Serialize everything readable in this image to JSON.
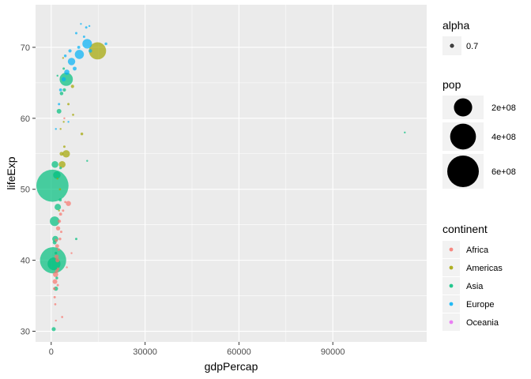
{
  "chart_data": {
    "type": "scatter",
    "xlabel": "gdpPercap",
    "ylabel": "lifeExp",
    "xlim": [
      -5000,
      120000
    ],
    "ylim": [
      28.5,
      76
    ],
    "x_ticks": [
      0,
      30000,
      60000,
      90000
    ],
    "x_tick_labels": [
      "0",
      "30000",
      "60000",
      "90000"
    ],
    "y_ticks": [
      30,
      40,
      50,
      60,
      70
    ],
    "y_tick_labels": [
      "30",
      "40",
      "50",
      "60",
      "70"
    ],
    "grid": true,
    "background": "#ebebeb",
    "point_alpha": 0.7,
    "colors": {
      "Africa": "#F8766D",
      "Americas": "#A3A500",
      "Asia": "#00BF7D",
      "Europe": "#00B0F6",
      "Oceania": "#E76BF3"
    },
    "legends": {
      "alpha": {
        "title": "alpha",
        "items": [
          "0.7"
        ]
      },
      "pop": {
        "title": "pop",
        "items": [
          "2e+08",
          "4e+08",
          "6e+08"
        ],
        "values": [
          200000000,
          400000000,
          600000000
        ]
      },
      "continent": {
        "title": "continent",
        "items": [
          "Africa",
          "Americas",
          "Asia",
          "Europe",
          "Oceania"
        ]
      }
    },
    "points": [
      {
        "continent": "Asia",
        "x": 400,
        "y": 50.5,
        "pop": 560000000
      },
      {
        "continent": "Asia",
        "x": 600,
        "y": 40.0,
        "pop": 372000000
      },
      {
        "continent": "Asia",
        "x": 900,
        "y": 39.5,
        "pop": 90000000
      },
      {
        "continent": "Asia",
        "x": 1100,
        "y": 45.5,
        "pop": 50000000
      },
      {
        "continent": "Asia",
        "x": 1300,
        "y": 43.0,
        "pop": 20000000
      },
      {
        "continent": "Asia",
        "x": 4800,
        "y": 65.5,
        "pop": 95000000
      },
      {
        "continent": "Asia",
        "x": 1200,
        "y": 53.5,
        "pop": 25000000
      },
      {
        "continent": "Asia",
        "x": 1800,
        "y": 52.0,
        "pop": 30000000
      },
      {
        "continent": "Asia",
        "x": 2100,
        "y": 47.5,
        "pop": 22000000
      },
      {
        "continent": "Asia",
        "x": 1100,
        "y": 42.5,
        "pop": 8000000
      },
      {
        "continent": "Asia",
        "x": 800,
        "y": 30.3,
        "pop": 9000000
      },
      {
        "continent": "Asia",
        "x": 1500,
        "y": 36.0,
        "pop": 10000000
      },
      {
        "continent": "Asia",
        "x": 2500,
        "y": 61.0,
        "pop": 12000000
      },
      {
        "continent": "Asia",
        "x": 3300,
        "y": 63.5,
        "pop": 7000000
      },
      {
        "continent": "Asia",
        "x": 4200,
        "y": 64.0,
        "pop": 6000000
      },
      {
        "continent": "Asia",
        "x": 2900,
        "y": 48.5,
        "pop": 5000000
      },
      {
        "continent": "Asia",
        "x": 4000,
        "y": 67.0,
        "pop": 3000000
      },
      {
        "continent": "Asia",
        "x": 8000,
        "y": 43.0,
        "pop": 3000000
      },
      {
        "continent": "Asia",
        "x": 11500,
        "y": 54.0,
        "pop": 2000000
      },
      {
        "continent": "Asia",
        "x": 113000,
        "y": 58.0,
        "pop": 1500000
      },
      {
        "continent": "Asia",
        "x": 2000,
        "y": 66.0,
        "pop": 2000000
      },
      {
        "continent": "Asia",
        "x": 1500,
        "y": 41.0,
        "pop": 4000000
      },
      {
        "continent": "Asia",
        "x": 1800,
        "y": 37.5,
        "pop": 4000000
      },
      {
        "continent": "Asia",
        "x": 3000,
        "y": 53.0,
        "pop": 3500000
      },
      {
        "continent": "Africa",
        "x": 1200,
        "y": 37.0,
        "pop": 12000000
      },
      {
        "continent": "Africa",
        "x": 1400,
        "y": 38.0,
        "pop": 15000000
      },
      {
        "continent": "Africa",
        "x": 1700,
        "y": 40.5,
        "pop": 10000000
      },
      {
        "continent": "Africa",
        "x": 1900,
        "y": 42.0,
        "pop": 8000000
      },
      {
        "continent": "Africa",
        "x": 2200,
        "y": 44.5,
        "pop": 10000000
      },
      {
        "continent": "Africa",
        "x": 2600,
        "y": 45.5,
        "pop": 6000000
      },
      {
        "continent": "Africa",
        "x": 3000,
        "y": 46.5,
        "pop": 5000000
      },
      {
        "continent": "Africa",
        "x": 5500,
        "y": 48.0,
        "pop": 14000000
      },
      {
        "continent": "Africa",
        "x": 1000,
        "y": 36.0,
        "pop": 4000000
      },
      {
        "continent": "Africa",
        "x": 1100,
        "y": 34.8,
        "pop": 3000000
      },
      {
        "continent": "Africa",
        "x": 1300,
        "y": 33.8,
        "pop": 2500000
      },
      {
        "continent": "Africa",
        "x": 1500,
        "y": 31.5,
        "pop": 2000000
      },
      {
        "continent": "Africa",
        "x": 3500,
        "y": 32.0,
        "pop": 2500000
      },
      {
        "continent": "Africa",
        "x": 1800,
        "y": 38.5,
        "pop": 6000000
      },
      {
        "continent": "Africa",
        "x": 2000,
        "y": 40.0,
        "pop": 9000000
      },
      {
        "continent": "Africa",
        "x": 2400,
        "y": 41.5,
        "pop": 4000000
      },
      {
        "continent": "Africa",
        "x": 2800,
        "y": 43.0,
        "pop": 4000000
      },
      {
        "continent": "Africa",
        "x": 3200,
        "y": 44.0,
        "pop": 3000000
      },
      {
        "continent": "Africa",
        "x": 3800,
        "y": 47.0,
        "pop": 3000000
      },
      {
        "continent": "Africa",
        "x": 4500,
        "y": 48.2,
        "pop": 2500000
      },
      {
        "continent": "Africa",
        "x": 1600,
        "y": 42.8,
        "pop": 5000000
      },
      {
        "continent": "Africa",
        "x": 2100,
        "y": 36.5,
        "pop": 3000000
      },
      {
        "continent": "Africa",
        "x": 5000,
        "y": 39.0,
        "pop": 1500000
      },
      {
        "continent": "Africa",
        "x": 6500,
        "y": 41.0,
        "pop": 1000000
      },
      {
        "continent": "Africa",
        "x": 4200,
        "y": 60.0,
        "pop": 1500000
      },
      {
        "continent": "Africa",
        "x": 2200,
        "y": 38.8,
        "pop": 4000000
      },
      {
        "continent": "Americas",
        "x": 14800,
        "y": 69.5,
        "pop": 160000000
      },
      {
        "continent": "Americas",
        "x": 4800,
        "y": 55.0,
        "pop": 30000000
      },
      {
        "continent": "Americas",
        "x": 3500,
        "y": 53.5,
        "pop": 25000000
      },
      {
        "continent": "Americas",
        "x": 4200,
        "y": 56.0,
        "pop": 3000000
      },
      {
        "continent": "Americas",
        "x": 3300,
        "y": 55.0,
        "pop": 8000000
      },
      {
        "continent": "Americas",
        "x": 9800,
        "y": 57.8,
        "pop": 4000000
      },
      {
        "continent": "Americas",
        "x": 6800,
        "y": 64.5,
        "pop": 6000000
      },
      {
        "continent": "Americas",
        "x": 5500,
        "y": 62.0,
        "pop": 3000000
      },
      {
        "continent": "Americas",
        "x": 3000,
        "y": 58.5,
        "pop": 2000000
      },
      {
        "continent": "Americas",
        "x": 2000,
        "y": 51.5,
        "pop": 2000000
      },
      {
        "continent": "Americas",
        "x": 2800,
        "y": 50.0,
        "pop": 2500000
      },
      {
        "continent": "Americas",
        "x": 4000,
        "y": 59.5,
        "pop": 1500000
      },
      {
        "continent": "Americas",
        "x": 2500,
        "y": 47.0,
        "pop": 1500000
      },
      {
        "continent": "Americas",
        "x": 3800,
        "y": 68.5,
        "pop": 1500000
      },
      {
        "continent": "Americas",
        "x": 7000,
        "y": 60.5,
        "pop": 2500000
      },
      {
        "continent": "Europe",
        "x": 11500,
        "y": 70.5,
        "pop": 50000000
      },
      {
        "continent": "Europe",
        "x": 9000,
        "y": 69.0,
        "pop": 45000000
      },
      {
        "continent": "Europe",
        "x": 6500,
        "y": 68.0,
        "pop": 30000000
      },
      {
        "continent": "Europe",
        "x": 5000,
        "y": 66.5,
        "pop": 15000000
      },
      {
        "continent": "Europe",
        "x": 4000,
        "y": 65.5,
        "pop": 10000000
      },
      {
        "continent": "Europe",
        "x": 12500,
        "y": 69.5,
        "pop": 7000000
      },
      {
        "continent": "Europe",
        "x": 17500,
        "y": 70.5,
        "pop": 4000000
      },
      {
        "continent": "Europe",
        "x": 10500,
        "y": 71.5,
        "pop": 3000000
      },
      {
        "continent": "Europe",
        "x": 11200,
        "y": 72.8,
        "pop": 3000000
      },
      {
        "continent": "Europe",
        "x": 8000,
        "y": 72.0,
        "pop": 3000000
      },
      {
        "continent": "Europe",
        "x": 3000,
        "y": 64.0,
        "pop": 5000000
      },
      {
        "continent": "Europe",
        "x": 2500,
        "y": 62.0,
        "pop": 3000000
      },
      {
        "continent": "Europe",
        "x": 7500,
        "y": 67.0,
        "pop": 8000000
      },
      {
        "continent": "Europe",
        "x": 6000,
        "y": 69.5,
        "pop": 6000000
      },
      {
        "continent": "Europe",
        "x": 9500,
        "y": 73.3,
        "pop": 1500000
      },
      {
        "continent": "Europe",
        "x": 12200,
        "y": 73.0,
        "pop": 2000000
      },
      {
        "continent": "Europe",
        "x": 1500,
        "y": 58.5,
        "pop": 2000000
      },
      {
        "continent": "Europe",
        "x": 5500,
        "y": 59.5,
        "pop": 1000000
      },
      {
        "continent": "Europe",
        "x": 4500,
        "y": 68.8,
        "pop": 4000000
      },
      {
        "continent": "Europe",
        "x": 8800,
        "y": 70.0,
        "pop": 5000000
      }
    ]
  }
}
